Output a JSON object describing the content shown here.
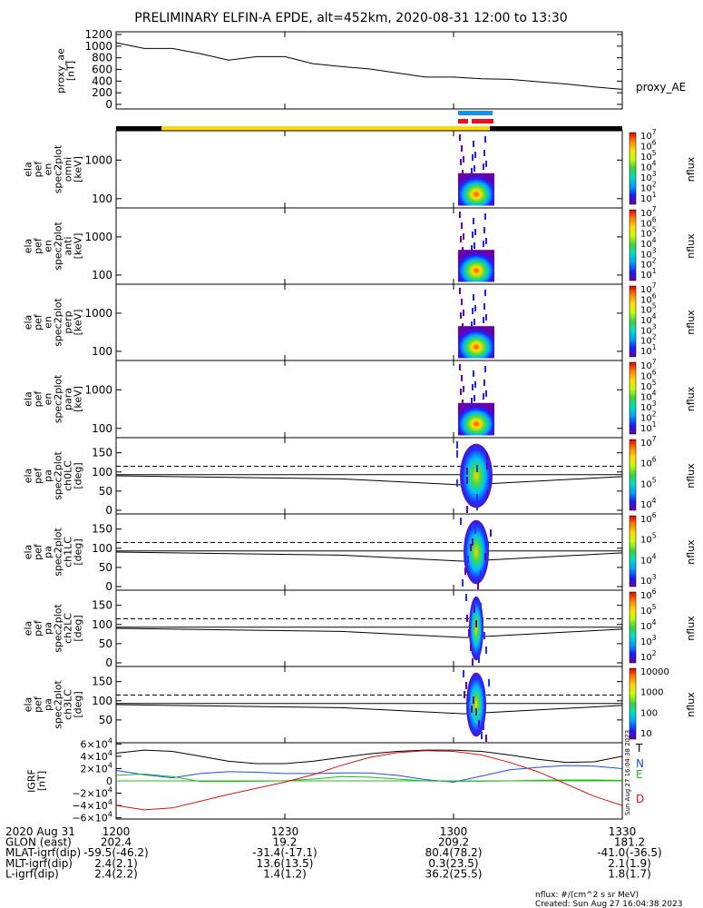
{
  "title": "PRELIMINARY ELFIN-A EPDE, alt=452km, 2020-08-31 12:00 to 13:30",
  "colors": {
    "yellow_bar": "#ffd800",
    "black_bar": "#000000",
    "blue_marker": "#1a8fe8",
    "red_marker": "#e8101c",
    "grf_T": "#000000",
    "grf_N": "#1f4fe0",
    "grf_E": "#1fbf1f",
    "grf_D": "#e01010"
  },
  "chart_data": [
    {
      "id": "proxy_ae",
      "type": "line",
      "ylabel": "proxy_ae\n[nT]",
      "yticks": [
        "1200",
        "1000",
        "800",
        "600",
        "400",
        "200",
        "0"
      ],
      "ylim": [
        0,
        1250
      ],
      "legend": "proxy_AE",
      "x_minutes": [
        0,
        5,
        10,
        15,
        20,
        25,
        30,
        35,
        40,
        45,
        50,
        55,
        60,
        65,
        70,
        75,
        80,
        85,
        90
      ],
      "values": [
        1060,
        960,
        960,
        870,
        760,
        820,
        820,
        700,
        650,
        610,
        540,
        470,
        470,
        440,
        430,
        390,
        350,
        300,
        260
      ]
    },
    {
      "id": "ela_pef_en_spec2plot_omni",
      "type": "heatmap",
      "ylabel": "ela\npef\nen\nspec2plot\nomni\n[keV]",
      "yticks": [
        "1000",
        "100"
      ],
      "colorbar_label": "nflux",
      "colorbar_ticks": [
        "10^7",
        "10^6",
        "10^5",
        "10^4",
        "10^3",
        "10^2",
        "10^1"
      ]
    },
    {
      "id": "ela_pef_en_spec2plot_anti",
      "type": "heatmap",
      "ylabel": "ela\npef\nen\nspec2plot\nanti\n[keV]",
      "yticks": [
        "1000",
        "100"
      ],
      "colorbar_label": "nflux",
      "colorbar_ticks": [
        "10^7",
        "10^6",
        "10^5",
        "10^4",
        "10^3",
        "10^2",
        "10^1"
      ]
    },
    {
      "id": "ela_pef_en_spec2plot_perp",
      "type": "heatmap",
      "ylabel": "ela\npef\nen\nspec2plot\nperp\n[keV]",
      "yticks": [
        "1000",
        "100"
      ],
      "colorbar_label": "nflux",
      "colorbar_ticks": [
        "10^7",
        "10^6",
        "10^5",
        "10^4",
        "10^3",
        "10^2",
        "10^1"
      ]
    },
    {
      "id": "ela_pef_en_spec2plot_para",
      "type": "heatmap",
      "ylabel": "ela\npef\nen\nspec2plot\npara\n[keV]",
      "yticks": [
        "1000",
        "100"
      ],
      "colorbar_label": "nflux",
      "colorbar_ticks": [
        "10^7",
        "10^6",
        "10^5",
        "10^4",
        "10^3",
        "10^2",
        "10^1"
      ]
    },
    {
      "id": "ela_pef_pa_spec2plot_ch0LC",
      "type": "heatmap",
      "ylabel": "ela\npef\npa\nspec2plot\nch0LC\n[deg]",
      "yticks": [
        "150",
        "100",
        "50",
        "0"
      ],
      "colorbar_label": "nflux",
      "colorbar_ticks": [
        "10^7",
        "10^6",
        "10^5",
        "10^4"
      ]
    },
    {
      "id": "ela_pef_pa_spec2plot_ch1LC",
      "type": "heatmap",
      "ylabel": "ela\npef\npa\nspec2plot\nch1LC\n[deg]",
      "yticks": [
        "150",
        "100",
        "50",
        "0"
      ],
      "colorbar_label": "nflux",
      "colorbar_ticks": [
        "10^6",
        "10^5",
        "10^4",
        "10^3"
      ]
    },
    {
      "id": "ela_pef_pa_spec2plot_ch2LC",
      "type": "heatmap",
      "ylabel": "ela\npef\npa\nspec2plot\nch2LC\n[deg]",
      "yticks": [
        "150",
        "100",
        "50",
        "0"
      ],
      "colorbar_label": "nflux",
      "colorbar_ticks": [
        "10^6",
        "10^5",
        "10^4",
        "10^3",
        "10^2"
      ]
    },
    {
      "id": "ela_pef_pa_spec2plot_ch3LC",
      "type": "heatmap",
      "ylabel": "ela\npef\npa\nspec2plot\nch3LC\n[deg]",
      "yticks": [
        "150",
        "100",
        "50"
      ],
      "colorbar_label": "nflux",
      "colorbar_ticks": [
        "10000",
        "1000",
        "100",
        "10"
      ]
    },
    {
      "id": "IGRF",
      "type": "line",
      "ylabel": "IGRF\n[nT]",
      "yticks": [
        "6×10^4",
        "4×10^4",
        "2×10^4",
        "0",
        "−2×10^4",
        "−4×10^4",
        "−6×10^4"
      ],
      "ylim": [
        -62000,
        62000
      ],
      "legend": [
        "T",
        "N",
        "E",
        "D"
      ],
      "stamp": "Sun Aug 27 16:04:38 2023",
      "x_minutes": [
        0,
        5,
        10,
        15,
        20,
        25,
        30,
        35,
        40,
        45,
        50,
        55,
        60,
        65,
        70,
        75,
        80,
        85,
        90
      ],
      "series": [
        {
          "name": "T",
          "values": [
            45000,
            50000,
            48000,
            40000,
            32000,
            28000,
            28000,
            32000,
            38000,
            44000,
            48000,
            50000,
            50000,
            48000,
            42000,
            35000,
            30000,
            31000,
            40000
          ]
        },
        {
          "name": "N",
          "values": [
            17000,
            10000,
            5000,
            12000,
            15000,
            14000,
            12000,
            12000,
            13000,
            13000,
            9000,
            2000,
            -2000,
            8000,
            18000,
            22000,
            25000,
            24000,
            20000
          ]
        },
        {
          "name": "E",
          "values": [
            9000,
            11000,
            7000,
            -1000,
            -1000,
            -500,
            0,
            3000,
            7000,
            6000,
            3000,
            0,
            -500,
            -500,
            0,
            1000,
            1500,
            1500,
            1000
          ]
        },
        {
          "name": "D",
          "values": [
            -40000,
            -47000,
            -44000,
            -33000,
            -22000,
            -12000,
            -2000,
            10000,
            25000,
            38000,
            46000,
            49000,
            48000,
            42000,
            30000,
            15000,
            -5000,
            -25000,
            -40000
          ]
        }
      ]
    }
  ],
  "xaxis": {
    "tick_labels": [
      "1200",
      "1230",
      "1300",
      "1330"
    ],
    "rows": [
      {
        "label": "2020 Aug 31",
        "values": [
          "",
          "",
          "",
          ""
        ]
      },
      {
        "label": "GLON (east)",
        "values": [
          "202.4",
          "19.2",
          "209.2",
          "181.2"
        ]
      },
      {
        "label": "MLAT-igrf(dip)",
        "values": [
          "-59.5(-46.2)",
          "-31.4(-17.1)",
          "80.4(78.2)",
          "-41.0(-36.5)"
        ]
      },
      {
        "label": "MLT-igrf(dip)",
        "values": [
          "2.4(2.1)",
          "13.6(13.5)",
          "0.3(23.5)",
          "2.1(1.9)"
        ]
      },
      {
        "label": "L-igrf(dip)",
        "values": [
          "2.4(2.2)",
          "1.4(1.2)",
          "36.2(25.5)",
          "1.8(1.7)"
        ]
      }
    ]
  },
  "footer": {
    "units": "nflux: #/(cm^2 s sr MeV)",
    "created": "Created: Sun Aug 27 16:04:38 2023"
  }
}
